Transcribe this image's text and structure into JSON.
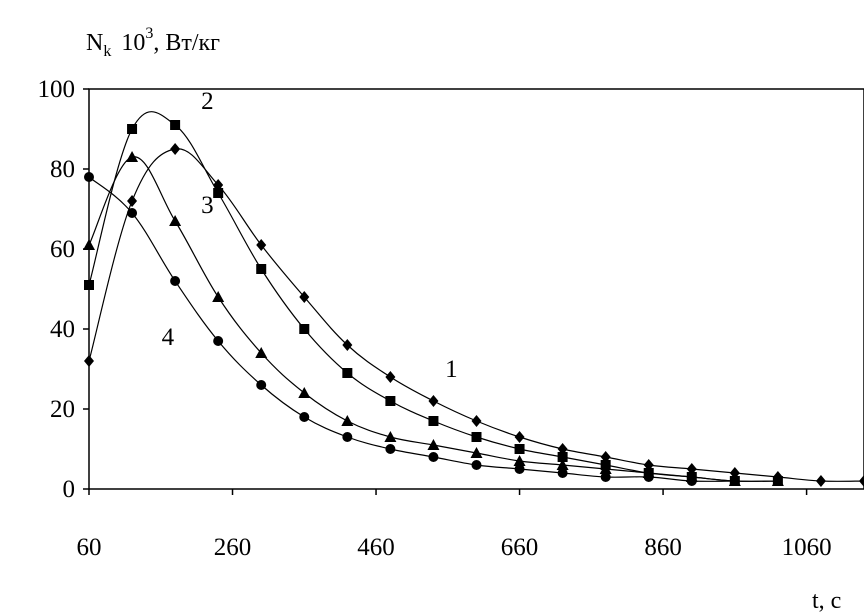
{
  "chart_data": {
    "type": "line",
    "title": "",
    "ylabel": "Nk 10^3, Вт/кг",
    "ylabel_parts": {
      "base": "N",
      "sub": "k",
      "times": "10",
      "sup": "3",
      "unit": ", Вт/кг"
    },
    "xlabel": "t, с",
    "xlim": [
      60,
      1140
    ],
    "ylim": [
      0,
      100
    ],
    "xticks": [
      60,
      260,
      460,
      660,
      860,
      1060
    ],
    "yticks": [
      0,
      20,
      40,
      60,
      80,
      100
    ],
    "grid": false,
    "legend": "none",
    "series": [
      {
        "name": "1",
        "marker": "diamond",
        "x": [
          60,
          120,
          180,
          240,
          300,
          360,
          420,
          480,
          540,
          600,
          660,
          720,
          780,
          840,
          900,
          960,
          1020,
          1080,
          1140
        ],
        "values": [
          32,
          72,
          85,
          76,
          61,
          48,
          36,
          28,
          22,
          17,
          13,
          10,
          8,
          6,
          5,
          4,
          3,
          2,
          2
        ]
      },
      {
        "name": "2",
        "marker": "square",
        "x": [
          60,
          120,
          180,
          240,
          300,
          360,
          420,
          480,
          540,
          600,
          660,
          720,
          780,
          840,
          900,
          960,
          1020
        ],
        "values": [
          51,
          90,
          91,
          74,
          55,
          40,
          29,
          22,
          17,
          13,
          10,
          8,
          6,
          4,
          3,
          2,
          2
        ]
      },
      {
        "name": "3",
        "marker": "triangle",
        "x": [
          60,
          120,
          180,
          240,
          300,
          360,
          420,
          480,
          540,
          600,
          660,
          720,
          780,
          840,
          900,
          960,
          1020
        ],
        "values": [
          61,
          83,
          67,
          48,
          34,
          24,
          17,
          13,
          11,
          9,
          7,
          6,
          5,
          4,
          3,
          2,
          2
        ]
      },
      {
        "name": "4",
        "marker": "circle",
        "x": [
          60,
          120,
          180,
          240,
          300,
          360,
          420,
          480,
          540,
          600,
          660,
          720,
          780,
          840,
          900,
          960
        ],
        "values": [
          78,
          69,
          52,
          37,
          26,
          18,
          13,
          10,
          8,
          6,
          5,
          4,
          3,
          3,
          2,
          2
        ]
      }
    ],
    "curve_labels": [
      {
        "text": "1",
        "x": 565,
        "y": 30
      },
      {
        "text": "2",
        "x": 225,
        "y": 97
      },
      {
        "text": "3",
        "x": 225,
        "y": 71
      },
      {
        "text": "4",
        "x": 170,
        "y": 38
      }
    ]
  }
}
